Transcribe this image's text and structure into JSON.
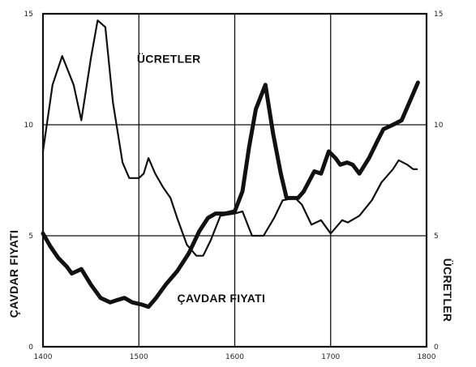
{
  "chart_data": {
    "type": "line",
    "title": "",
    "xlabel": "",
    "ylabel_left": "ÇAVDAR FIYATI",
    "ylabel_right": "ÜCRETLER",
    "xlim": [
      1400,
      1800
    ],
    "ylim": [
      0,
      15
    ],
    "x_ticks": [
      "1400",
      "1500",
      "1600",
      "1700",
      "1800"
    ],
    "y_ticks_left": [
      "0",
      "5",
      "10",
      "15"
    ],
    "y_ticks_right": [
      "0",
      "5",
      "10",
      "15"
    ],
    "grid": true,
    "series": [
      {
        "name": "ÜCRETLER",
        "emphasis": "thin",
        "points": [
          [
            1400,
            8.8
          ],
          [
            1410,
            11.8
          ],
          [
            1420,
            13.1
          ],
          [
            1432,
            11.8
          ],
          [
            1440,
            10.2
          ],
          [
            1450,
            13.0
          ],
          [
            1457,
            14.7
          ],
          [
            1465,
            14.4
          ],
          [
            1473,
            11.0
          ],
          [
            1483,
            8.3
          ],
          [
            1490,
            7.6
          ],
          [
            1500,
            7.6
          ],
          [
            1505,
            7.8
          ],
          [
            1510,
            8.5
          ],
          [
            1517,
            7.8
          ],
          [
            1525,
            7.2
          ],
          [
            1533,
            6.7
          ],
          [
            1540,
            5.8
          ],
          [
            1550,
            4.6
          ],
          [
            1560,
            4.1
          ],
          [
            1567,
            4.1
          ],
          [
            1575,
            4.8
          ],
          [
            1585,
            5.9
          ],
          [
            1600,
            6.0
          ],
          [
            1608,
            6.1
          ],
          [
            1618,
            5.0
          ],
          [
            1630,
            5.0
          ],
          [
            1641,
            5.8
          ],
          [
            1650,
            6.6
          ],
          [
            1663,
            6.7
          ],
          [
            1670,
            6.4
          ],
          [
            1680,
            5.5
          ],
          [
            1690,
            5.7
          ],
          [
            1700,
            5.1
          ],
          [
            1712,
            5.7
          ],
          [
            1718,
            5.6
          ],
          [
            1730,
            5.9
          ],
          [
            1743,
            6.6
          ],
          [
            1753,
            7.4
          ],
          [
            1765,
            8.0
          ],
          [
            1771,
            8.4
          ],
          [
            1780,
            8.2
          ],
          [
            1786,
            8.0
          ],
          [
            1790,
            8.0
          ]
        ]
      },
      {
        "name": "ÇAVDAR FIYATI",
        "emphasis": "thick",
        "points": [
          [
            1400,
            5.1
          ],
          [
            1408,
            4.5
          ],
          [
            1416,
            4.0
          ],
          [
            1425,
            3.6
          ],
          [
            1430,
            3.3
          ],
          [
            1440,
            3.5
          ],
          [
            1450,
            2.8
          ],
          [
            1460,
            2.2
          ],
          [
            1470,
            2.0
          ],
          [
            1477,
            2.1
          ],
          [
            1485,
            2.2
          ],
          [
            1493,
            2.0
          ],
          [
            1503,
            1.9
          ],
          [
            1510,
            1.8
          ],
          [
            1518,
            2.2
          ],
          [
            1528,
            2.8
          ],
          [
            1540,
            3.4
          ],
          [
            1552,
            4.2
          ],
          [
            1563,
            5.2
          ],
          [
            1572,
            5.8
          ],
          [
            1580,
            6.0
          ],
          [
            1590,
            6.0
          ],
          [
            1600,
            6.1
          ],
          [
            1608,
            7.0
          ],
          [
            1615,
            9.0
          ],
          [
            1622,
            10.7
          ],
          [
            1632,
            11.8
          ],
          [
            1640,
            9.6
          ],
          [
            1648,
            7.8
          ],
          [
            1654,
            6.7
          ],
          [
            1666,
            6.7
          ],
          [
            1672,
            7.0
          ],
          [
            1683,
            7.9
          ],
          [
            1690,
            7.8
          ],
          [
            1698,
            8.8
          ],
          [
            1705,
            8.5
          ],
          [
            1710,
            8.2
          ],
          [
            1717,
            8.3
          ],
          [
            1723,
            8.2
          ],
          [
            1730,
            7.8
          ],
          [
            1740,
            8.5
          ],
          [
            1748,
            9.2
          ],
          [
            1755,
            9.8
          ],
          [
            1765,
            10.0
          ],
          [
            1774,
            10.2
          ],
          [
            1785,
            11.3
          ],
          [
            1791,
            11.9
          ]
        ]
      }
    ],
    "annotations": [
      {
        "text": "ÜCRETLER",
        "at": [
          1498,
          12.8
        ]
      },
      {
        "text": "ÇAVDAR FIYATI",
        "at": [
          1540,
          2.0
        ]
      }
    ]
  }
}
